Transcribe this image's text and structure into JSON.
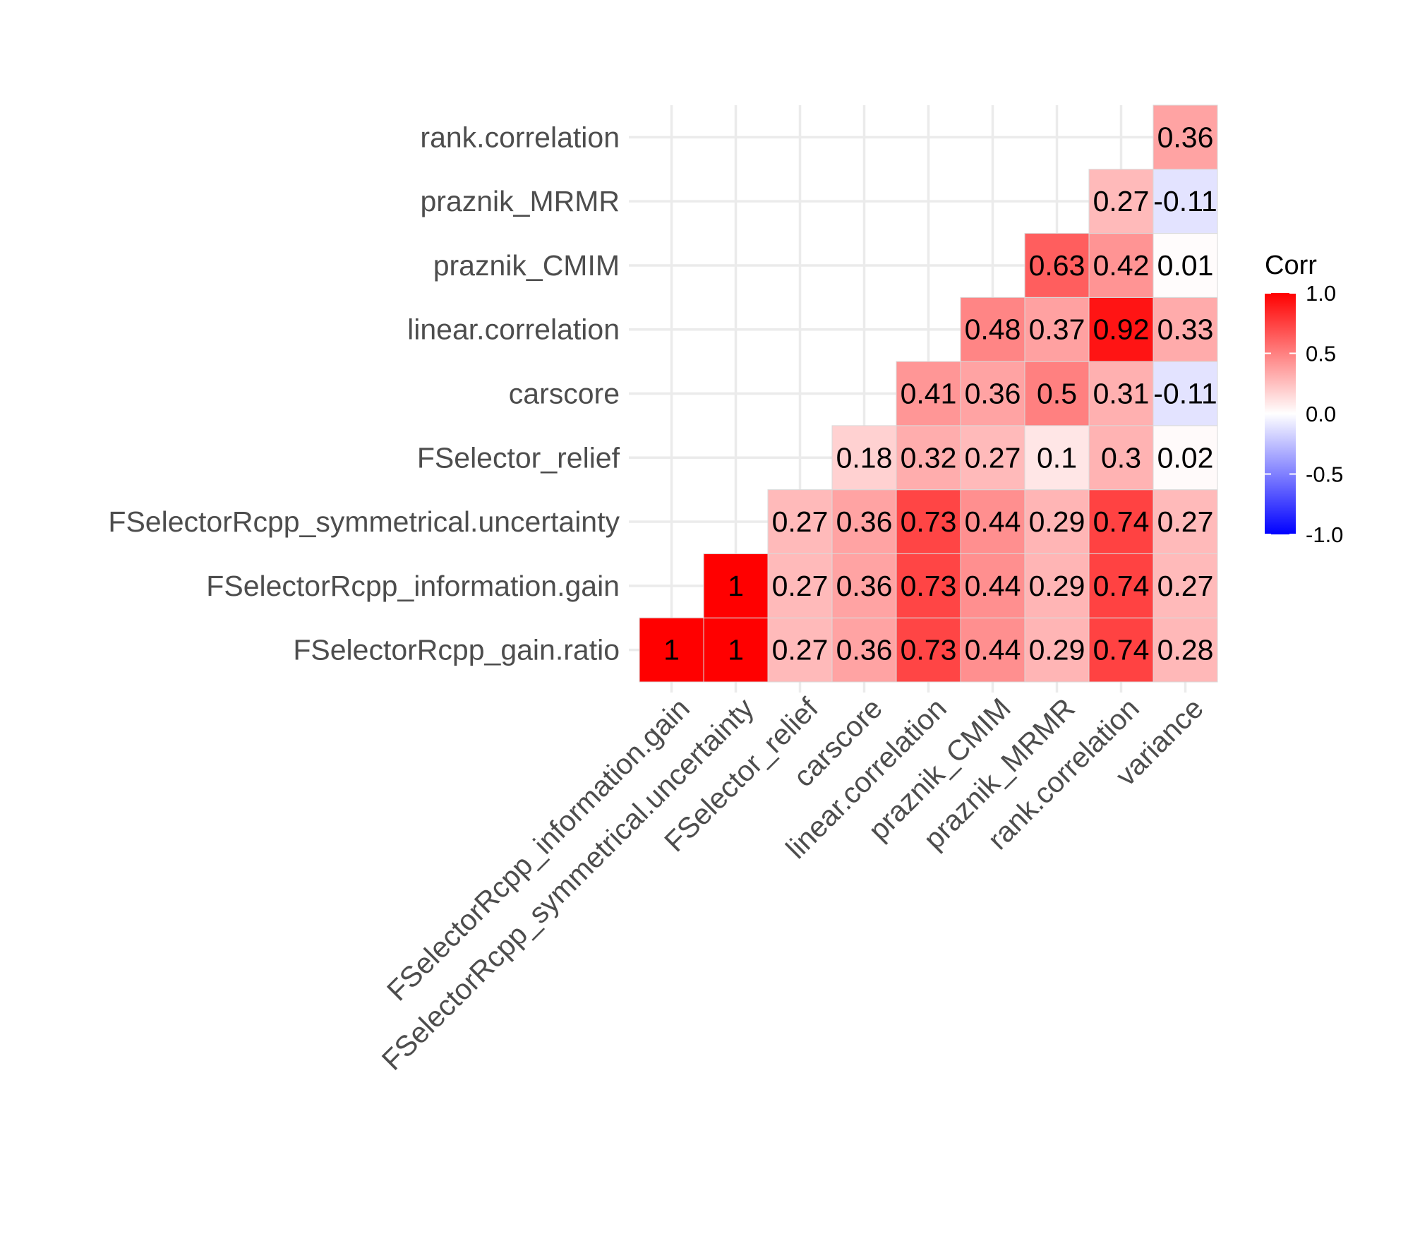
{
  "chart_data": {
    "type": "heatmap",
    "title": "",
    "xlabel": "",
    "ylabel": "",
    "x": [
      "FSelectorRcpp_information.gain",
      "FSelectorRcpp_symmetrical.uncertainty",
      "FSelector_relief",
      "carscore",
      "linear.correlation",
      "praznik_CMIM",
      "praznik_MRMR",
      "rank.correlation",
      "variance"
    ],
    "y": [
      "FSelectorRcpp_gain.ratio",
      "FSelectorRcpp_information.gain",
      "FSelectorRcpp_symmetrical.uncertainty",
      "FSelector_relief",
      "carscore",
      "linear.correlation",
      "praznik_CMIM",
      "praznik_MRMR",
      "rank.correlation"
    ],
    "values": [
      [
        1,
        1,
        0.27,
        0.36,
        0.73,
        0.44,
        0.29,
        0.74,
        0.28
      ],
      [
        null,
        1,
        0.27,
        0.36,
        0.73,
        0.44,
        0.29,
        0.74,
        0.27
      ],
      [
        null,
        null,
        0.27,
        0.36,
        0.73,
        0.44,
        0.29,
        0.74,
        0.27
      ],
      [
        null,
        null,
        null,
        0.18,
        0.32,
        0.27,
        0.1,
        0.3,
        0.02
      ],
      [
        null,
        null,
        null,
        null,
        0.41,
        0.36,
        0.5,
        0.31,
        -0.11
      ],
      [
        null,
        null,
        null,
        null,
        null,
        0.48,
        0.37,
        0.92,
        0.33
      ],
      [
        null,
        null,
        null,
        null,
        null,
        null,
        0.63,
        0.42,
        0.01
      ],
      [
        null,
        null,
        null,
        null,
        null,
        null,
        null,
        0.27,
        -0.11
      ],
      [
        null,
        null,
        null,
        null,
        null,
        null,
        null,
        null,
        0.36
      ]
    ],
    "color_range": [
      -1,
      1
    ],
    "colors": {
      "low": "#0000ff",
      "mid": "#ffffff",
      "high": "#ff0000"
    },
    "legend": {
      "title": "Corr",
      "position": "right",
      "ticks": [
        1.0,
        0.5,
        0.0,
        -0.5,
        -1.0
      ],
      "tick_labels": [
        "1.0",
        "0.5",
        "0.0",
        "-0.5",
        "-1.0"
      ]
    },
    "grid": true
  }
}
